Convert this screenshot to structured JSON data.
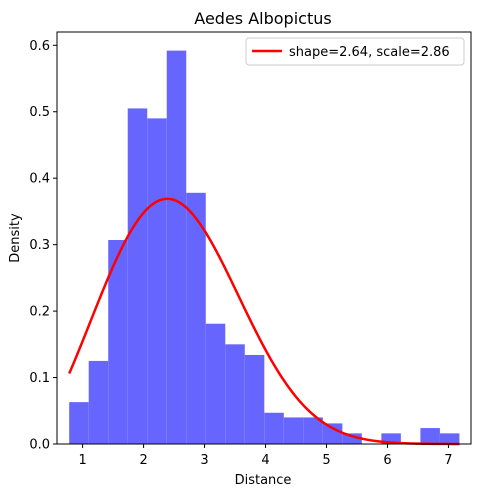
{
  "chart_data": {
    "type": "histogram",
    "title": "Aedes Albopictus",
    "xlabel": "Distance",
    "ylabel": "Density",
    "xlim": [
      0.58,
      7.37
    ],
    "ylim": [
      0,
      0.62
    ],
    "xticks": [
      "1",
      "2",
      "3",
      "4",
      "5",
      "6",
      "7"
    ],
    "xtick_values": [
      1,
      2,
      3,
      4,
      5,
      6,
      7
    ],
    "yticks": [
      "0.0",
      "0.1",
      "0.2",
      "0.3",
      "0.4",
      "0.5",
      "0.6"
    ],
    "ytick_values": [
      0.0,
      0.1,
      0.2,
      0.3,
      0.4,
      0.5,
      0.6
    ],
    "bar_color": "#6666ff",
    "bars": [
      {
        "x0": 0.78,
        "x1": 1.1,
        "density": 0.063
      },
      {
        "x0": 1.1,
        "x1": 1.42,
        "density": 0.125
      },
      {
        "x0": 1.42,
        "x1": 1.74,
        "density": 0.307
      },
      {
        "x0": 1.74,
        "x1": 2.06,
        "density": 0.505
      },
      {
        "x0": 2.06,
        "x1": 2.38,
        "density": 0.49
      },
      {
        "x0": 2.38,
        "x1": 2.7,
        "density": 0.592
      },
      {
        "x0": 2.7,
        "x1": 3.02,
        "density": 0.378
      },
      {
        "x0": 3.02,
        "x1": 3.34,
        "density": 0.181
      },
      {
        "x0": 3.34,
        "x1": 3.66,
        "density": 0.15
      },
      {
        "x0": 3.66,
        "x1": 3.98,
        "density": 0.134
      },
      {
        "x0": 3.98,
        "x1": 4.3,
        "density": 0.047
      },
      {
        "x0": 4.3,
        "x1": 4.62,
        "density": 0.04
      },
      {
        "x0": 4.62,
        "x1": 4.94,
        "density": 0.04
      },
      {
        "x0": 4.94,
        "x1": 5.26,
        "density": 0.031
      },
      {
        "x0": 5.26,
        "x1": 5.58,
        "density": 0.016
      },
      {
        "x0": 5.58,
        "x1": 5.9,
        "density": 0.0
      },
      {
        "x0": 5.9,
        "x1": 6.22,
        "density": 0.016
      },
      {
        "x0": 6.22,
        "x1": 6.54,
        "density": 0.0
      },
      {
        "x0": 6.54,
        "x1": 6.86,
        "density": 0.024
      },
      {
        "x0": 6.86,
        "x1": 7.18,
        "density": 0.016
      }
    ],
    "series": [
      {
        "name": "shape=2.64, scale=2.86",
        "type": "line",
        "color": "#ff0000",
        "distribution": "weibull",
        "shape": 2.64,
        "scale": 2.86,
        "x_range": [
          0.78,
          7.18
        ]
      }
    ],
    "legend_position": "top-right",
    "grid": false
  }
}
